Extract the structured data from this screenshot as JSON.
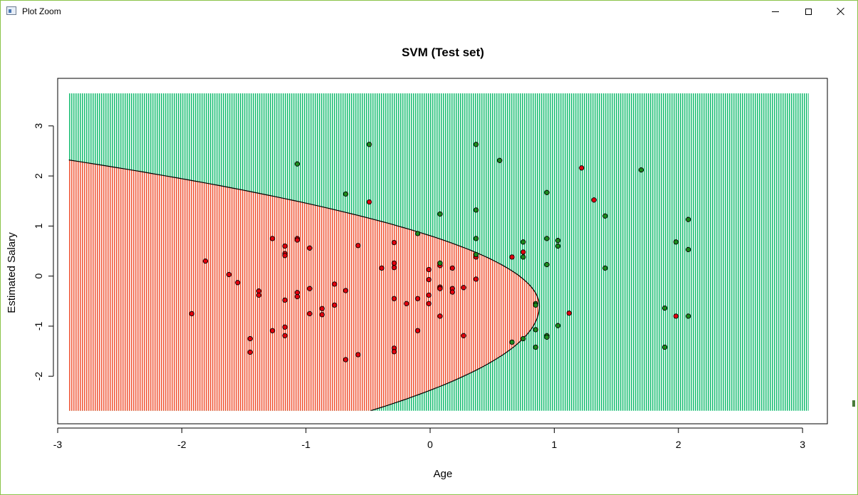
{
  "window": {
    "title": "Plot Zoom",
    "minimize_label": "",
    "maximize_label": "",
    "close_label": ""
  },
  "colors": {
    "region_red": "#f05a3c",
    "region_green": "#1fbf76",
    "point_red": "#e0000f",
    "point_green": "#1d8a1d",
    "point_stroke": "#000000",
    "frame": "#000000"
  },
  "chart_data": {
    "type": "scatter",
    "title": "SVM (Test set)",
    "xlabel": "Age",
    "ylabel": "Estimated Salary",
    "xlim": [
      -3.0,
      3.2
    ],
    "ylim": [
      -2.95,
      3.95
    ],
    "grid_extent": {
      "x": [
        -2.91,
        3.05
      ],
      "y": [
        -2.69,
        3.65
      ]
    },
    "x_ticks": [
      -3,
      -2,
      -1,
      0,
      1,
      2,
      3
    ],
    "y_ticks": [
      -2,
      -1,
      0,
      1,
      2,
      3
    ],
    "decision_boundary": "curve separating the red region (left) from the green region (right); vertex near Age 0.88, Estimated Salary -0.6",
    "legend": "none",
    "series": [
      {
        "color": "red",
        "points": [
          [
            -1.92,
            -0.75
          ],
          [
            -1.81,
            0.3
          ],
          [
            -1.62,
            0.03
          ],
          [
            -1.55,
            -0.13
          ],
          [
            -1.45,
            -1.25
          ],
          [
            -1.45,
            -1.52
          ],
          [
            -1.38,
            -0.3
          ],
          [
            -1.38,
            -0.38
          ],
          [
            -1.27,
            0.75
          ],
          [
            -1.27,
            -1.09
          ],
          [
            -1.17,
            0.6
          ],
          [
            -1.17,
            0.45
          ],
          [
            -1.17,
            0.41
          ],
          [
            -1.17,
            -0.48
          ],
          [
            -1.17,
            -1.02
          ],
          [
            -1.17,
            -1.19
          ],
          [
            -1.07,
            0.75
          ],
          [
            -1.07,
            0.72
          ],
          [
            -1.07,
            -0.33
          ],
          [
            -1.07,
            -0.41
          ],
          [
            -0.97,
            0.56
          ],
          [
            -0.97,
            -0.25
          ],
          [
            -0.97,
            -0.75
          ],
          [
            -0.87,
            -0.65
          ],
          [
            -0.87,
            -0.77
          ],
          [
            -0.77,
            -0.16
          ],
          [
            -0.77,
            -0.58
          ],
          [
            -0.68,
            -0.29
          ],
          [
            -0.68,
            -1.67
          ],
          [
            -0.49,
            1.48
          ],
          [
            -0.58,
            0.61
          ],
          [
            -0.58,
            -1.57
          ],
          [
            -0.39,
            0.16
          ],
          [
            -0.29,
            0.67
          ],
          [
            -0.29,
            0.26
          ],
          [
            -0.29,
            0.17
          ],
          [
            -0.29,
            -0.45
          ],
          [
            -0.29,
            -1.44
          ],
          [
            -0.29,
            -1.51
          ],
          [
            -0.19,
            -0.55
          ],
          [
            -0.1,
            -0.45
          ],
          [
            -0.1,
            -1.09
          ],
          [
            -0.01,
            0.13
          ],
          [
            -0.01,
            -0.07
          ],
          [
            -0.01,
            -0.38
          ],
          [
            -0.01,
            -0.55
          ],
          [
            0.08,
            0.21
          ],
          [
            0.08,
            -0.22
          ],
          [
            0.08,
            -0.25
          ],
          [
            0.08,
            -0.8
          ],
          [
            0.18,
            0.16
          ],
          [
            0.18,
            -0.25
          ],
          [
            0.18,
            -0.32
          ],
          [
            0.27,
            -0.23
          ],
          [
            0.27,
            -1.19
          ],
          [
            0.37,
            0.38
          ],
          [
            0.37,
            -0.06
          ],
          [
            0.66,
            0.38
          ],
          [
            0.75,
            0.48
          ],
          [
            1.12,
            -0.74
          ],
          [
            1.22,
            2.16
          ],
          [
            1.32,
            1.52
          ],
          [
            1.98,
            -0.8
          ]
        ]
      },
      {
        "color": "green",
        "points": [
          [
            -1.07,
            2.24
          ],
          [
            -0.49,
            2.63
          ],
          [
            -0.68,
            1.64
          ],
          [
            -0.1,
            0.85
          ],
          [
            0.08,
            1.24
          ],
          [
            0.08,
            0.26
          ],
          [
            0.37,
            2.63
          ],
          [
            0.37,
            1.32
          ],
          [
            0.37,
            0.75
          ],
          [
            0.37,
            0.43
          ],
          [
            0.56,
            2.31
          ],
          [
            0.66,
            -1.32
          ],
          [
            0.75,
            0.68
          ],
          [
            0.75,
            0.38
          ],
          [
            0.75,
            -1.25
          ],
          [
            0.85,
            -0.55
          ],
          [
            0.85,
            -0.58
          ],
          [
            0.85,
            -1.07
          ],
          [
            0.85,
            -1.42
          ],
          [
            0.94,
            1.67
          ],
          [
            0.94,
            0.75
          ],
          [
            0.94,
            0.23
          ],
          [
            0.94,
            -1.19
          ],
          [
            0.94,
            -1.22
          ],
          [
            1.03,
            0.71
          ],
          [
            1.03,
            0.6
          ],
          [
            1.03,
            -0.99
          ],
          [
            1.41,
            1.2
          ],
          [
            1.41,
            0.16
          ],
          [
            1.7,
            2.12
          ],
          [
            1.89,
            -0.64
          ],
          [
            1.89,
            -1.42
          ],
          [
            1.98,
            0.68
          ],
          [
            2.08,
            1.13
          ],
          [
            2.08,
            0.53
          ],
          [
            2.08,
            -0.8
          ]
        ]
      }
    ]
  }
}
